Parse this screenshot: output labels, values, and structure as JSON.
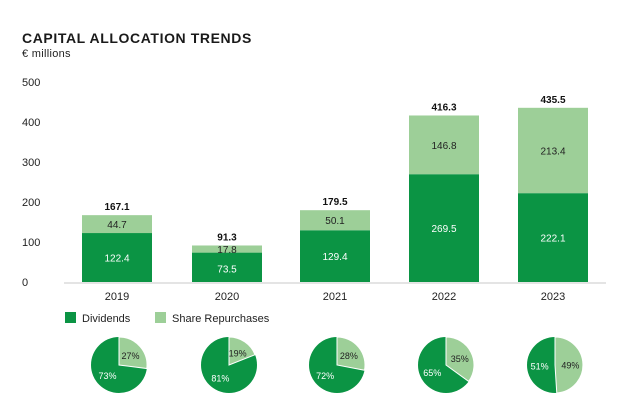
{
  "title": "CAPITAL ALLOCATION TRENDS",
  "subtitle": "€ millions",
  "colors": {
    "dividends": "#0b9444",
    "repurchases": "#9dcf98",
    "axis": "#c8c8c8",
    "text": "#222222"
  },
  "chart_data": {
    "type": "bar",
    "stacked": true,
    "title": "CAPITAL ALLOCATION TRENDS",
    "ylabel": "€ millions",
    "categories": [
      "2019",
      "2020",
      "2021",
      "2022",
      "2023"
    ],
    "series": [
      {
        "name": "Dividends",
        "values": [
          122.4,
          73.5,
          129.4,
          269.5,
          222.1
        ],
        "labels": [
          "122.4",
          "73.5",
          "129.4",
          "269.5",
          "222.1"
        ]
      },
      {
        "name": "Share Repurchases",
        "values": [
          44.7,
          17.8,
          50.1,
          146.8,
          213.4
        ],
        "labels": [
          "44.7",
          "17.8",
          "50.1",
          "146.8",
          "213.4"
        ]
      }
    ],
    "totals": [
      167.1,
      91.3,
      179.5,
      416.3,
      435.5
    ],
    "total_labels": [
      "167.1",
      "91.3",
      "179.5",
      "416.3",
      "435.5"
    ],
    "ylim": [
      0,
      500
    ],
    "yticks": [
      0,
      100,
      200,
      300,
      400,
      500
    ],
    "ytick_labels": [
      "0",
      "100",
      "200",
      "300",
      "400",
      "500"
    ],
    "grid": false,
    "legend": {
      "placement": "bottom-left",
      "entries": [
        "Dividends",
        "Share Repurchases"
      ]
    },
    "pies": [
      {
        "year": "2019",
        "dividends_pct": 73,
        "repurchases_pct": 27,
        "dividends_label": "73%",
        "repurchases_label": "27%"
      },
      {
        "year": "2020",
        "dividends_pct": 81,
        "repurchases_pct": 19,
        "dividends_label": "81%",
        "repurchases_label": "19%"
      },
      {
        "year": "2021",
        "dividends_pct": 72,
        "repurchases_pct": 28,
        "dividends_label": "72%",
        "repurchases_label": "28%"
      },
      {
        "year": "2022",
        "dividends_pct": 65,
        "repurchases_pct": 35,
        "dividends_label": "65%",
        "repurchases_label": "35%"
      },
      {
        "year": "2023",
        "dividends_pct": 51,
        "repurchases_pct": 49,
        "dividends_label": "51%",
        "repurchases_label": "49%"
      }
    ]
  }
}
